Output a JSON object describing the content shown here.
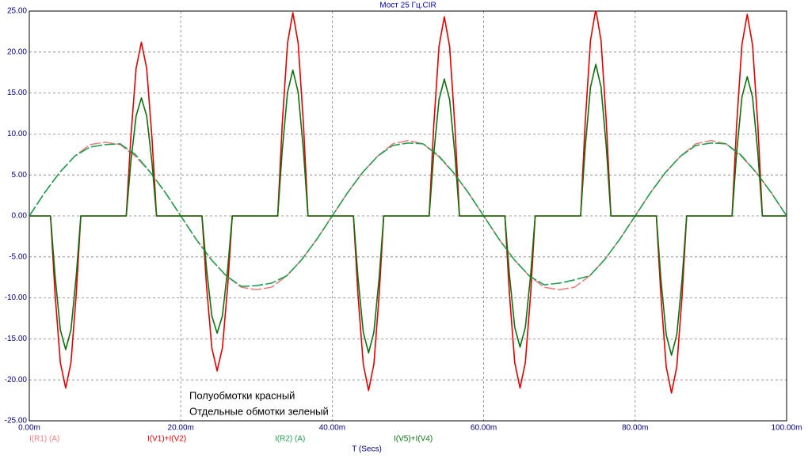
{
  "chart_data": {
    "type": "line",
    "title": "Мост 25 Гц.CIR",
    "xlabel": "T (Secs)",
    "annotations": [
      "Полуобмотки красный",
      "Отдельные обмотки зеленый"
    ],
    "xlim": [
      0,
      100
    ],
    "xticks": [
      {
        "value": 0,
        "label": "0.00m"
      },
      {
        "value": 20,
        "label": "20.00m"
      },
      {
        "value": 40,
        "label": "40.00m"
      },
      {
        "value": 60,
        "label": "60.00m"
      },
      {
        "value": 80,
        "label": "80.00m"
      },
      {
        "value": 100,
        "label": "100.00m"
      }
    ],
    "ylim": [
      -25,
      25
    ],
    "yticks": [
      {
        "value": -25,
        "label": "-25.00"
      },
      {
        "value": -20,
        "label": "-20.00"
      },
      {
        "value": -15,
        "label": "-15.00"
      },
      {
        "value": -10,
        "label": "-10.00"
      },
      {
        "value": -5,
        "label": "-5.00"
      },
      {
        "value": 0,
        "label": "0.00"
      },
      {
        "value": 5,
        "label": "5.00"
      },
      {
        "value": 10,
        "label": "10.00"
      },
      {
        "value": 15,
        "label": "15.00"
      },
      {
        "value": 20,
        "label": "20.00"
      },
      {
        "value": 25,
        "label": "25.00"
      }
    ],
    "grid": true,
    "series": [
      {
        "name": "I(R1) (A)",
        "color": "#f08080",
        "dashed": true,
        "x": [
          0,
          2,
          4,
          6,
          8,
          10,
          12,
          14,
          16,
          18,
          20,
          22,
          24,
          26,
          28,
          30,
          32,
          34,
          36,
          38,
          40,
          42,
          44,
          46,
          48,
          50,
          52,
          54,
          56,
          58,
          60,
          62,
          64,
          66,
          68,
          70,
          72,
          74,
          76,
          78,
          80,
          82,
          84,
          86,
          88,
          90,
          92,
          94,
          96,
          98,
          100
        ],
        "values": [
          0,
          2.8,
          5.3,
          7.3,
          8.7,
          9,
          8.7,
          7.3,
          5.3,
          2.8,
          0,
          -2.8,
          -5.3,
          -7.3,
          -8.7,
          -9,
          -8.7,
          -7.3,
          -5.3,
          -2.8,
          0,
          2.8,
          5.3,
          7.3,
          8.8,
          9.2,
          8.8,
          7.3,
          5.3,
          2.8,
          0,
          -2.8,
          -5.3,
          -7.3,
          -8.7,
          -9,
          -8.7,
          -7.3,
          -5.3,
          -2.8,
          0,
          2.8,
          5.3,
          7.3,
          8.8,
          9.2,
          8.8,
          7.3,
          5.3,
          2.8,
          0
        ]
      },
      {
        "name": "I(V1)+I(V2)",
        "color": "#e00000",
        "dashed": false,
        "x": [
          0,
          2.8,
          3.4,
          4.1,
          4.8,
          5.5,
          6.2,
          6.8,
          12.8,
          13.4,
          14.1,
          14.8,
          15.5,
          16.2,
          16.8,
          22.8,
          23.4,
          24.1,
          24.8,
          25.5,
          26.2,
          26.8,
          32.8,
          33.4,
          34.1,
          34.8,
          35.5,
          36.2,
          36.8,
          42.8,
          43.4,
          44.1,
          44.8,
          45.5,
          46.2,
          46.8,
          52.8,
          53.4,
          54.1,
          54.8,
          55.5,
          56.2,
          56.8,
          62.8,
          63.4,
          64.1,
          64.8,
          65.5,
          66.2,
          66.8,
          72.8,
          73.4,
          74.1,
          74.8,
          75.5,
          76.2,
          76.8,
          82.8,
          83.4,
          84.1,
          84.8,
          85.5,
          86.2,
          86.8,
          92.8,
          93.4,
          94.1,
          94.8,
          95.5,
          96.2,
          96.8,
          100
        ],
        "values": [
          0,
          0,
          -9.5,
          -17.9,
          -21,
          -17.9,
          -9.5,
          0,
          0,
          9.5,
          18,
          21.2,
          18,
          9.5,
          0,
          0,
          -8.5,
          -16.1,
          -18.9,
          -16.1,
          -8.5,
          0,
          0,
          11.2,
          21.1,
          24.8,
          21.1,
          11.2,
          0,
          0,
          -9.6,
          -18.1,
          -21.3,
          -18.1,
          -9.6,
          0,
          0,
          10.9,
          20.7,
          24.3,
          20.7,
          10.9,
          0,
          0,
          -9.5,
          -17.9,
          -21,
          -17.9,
          -9.5,
          0,
          0,
          11.3,
          21.4,
          25.2,
          21.4,
          11.3,
          0,
          0,
          -9.7,
          -18.4,
          -21.6,
          -18.4,
          -9.7,
          0,
          0,
          11.1,
          20.9,
          24.6,
          20.9,
          11.1,
          0,
          0
        ]
      },
      {
        "name": "I(R2) (A)",
        "color": "#20a050",
        "dashed": true,
        "x": [
          0,
          2,
          4,
          6,
          8,
          10,
          12,
          14,
          16,
          18,
          20,
          22,
          24,
          26,
          28,
          30,
          32,
          34,
          36,
          38,
          40,
          42,
          44,
          46,
          48,
          50,
          52,
          54,
          56,
          58,
          60,
          62,
          64,
          66,
          68,
          70,
          72,
          74,
          76,
          78,
          80,
          82,
          84,
          86,
          88,
          90,
          92,
          94,
          96,
          98,
          100
        ],
        "values": [
          0,
          2.8,
          5.3,
          7.3,
          8.4,
          8.7,
          8.8,
          7.5,
          5.3,
          2.8,
          0,
          -2.8,
          -5.3,
          -7.3,
          -8.6,
          -8.5,
          -8.2,
          -7.3,
          -5.3,
          -2.8,
          0,
          2.8,
          5.3,
          7.3,
          8.6,
          8.9,
          8.8,
          7.4,
          5.3,
          2.8,
          0,
          -2.8,
          -5.3,
          -7.3,
          -8.4,
          -8.2,
          -7.8,
          -7.3,
          -5.3,
          -2.8,
          0,
          2.8,
          5.3,
          7.3,
          8.6,
          8.9,
          8.8,
          7.4,
          5.3,
          2.8,
          0
        ]
      },
      {
        "name": "I(V5)+I(V4)",
        "color": "#107010",
        "dashed": false,
        "x": [
          0,
          2.8,
          3.4,
          4.1,
          4.8,
          5.5,
          6.2,
          6.8,
          12.8,
          13.4,
          14.1,
          14.8,
          15.5,
          16.2,
          16.8,
          22.8,
          23.4,
          24.1,
          24.8,
          25.5,
          26.2,
          26.8,
          32.8,
          33.4,
          34.1,
          34.8,
          35.5,
          36.2,
          36.8,
          42.8,
          43.4,
          44.1,
          44.8,
          45.5,
          46.2,
          46.8,
          52.8,
          53.4,
          54.1,
          54.8,
          55.5,
          56.2,
          56.8,
          62.8,
          63.4,
          64.1,
          64.8,
          65.5,
          66.2,
          66.8,
          72.8,
          73.4,
          74.1,
          74.8,
          75.5,
          76.2,
          76.8,
          82.8,
          83.4,
          84.1,
          84.8,
          85.5,
          86.2,
          86.8,
          92.8,
          93.4,
          94.1,
          94.8,
          95.5,
          96.2,
          96.8,
          100
        ],
        "values": [
          0,
          0,
          -7.3,
          -13.9,
          -16.3,
          -13.9,
          -7.3,
          0,
          0,
          6.5,
          12.2,
          14.4,
          12.2,
          6.5,
          0,
          0,
          -6.4,
          -12.2,
          -14.3,
          -12.2,
          -6.4,
          0,
          0,
          8,
          15.1,
          17.8,
          15.1,
          8,
          0,
          0,
          -7.5,
          -14.2,
          -16.7,
          -14.2,
          -7.5,
          0,
          0,
          7.5,
          14.2,
          16.7,
          14.2,
          7.5,
          0,
          0,
          -7.2,
          -13.6,
          -16,
          -13.6,
          -7.2,
          0,
          0,
          8.3,
          15.7,
          18.5,
          15.7,
          8.3,
          0,
          0,
          -7.7,
          -14.5,
          -17,
          -14.5,
          -7.7,
          0,
          0,
          7.7,
          14.5,
          17,
          14.5,
          7.7,
          0,
          0
        ]
      }
    ]
  }
}
